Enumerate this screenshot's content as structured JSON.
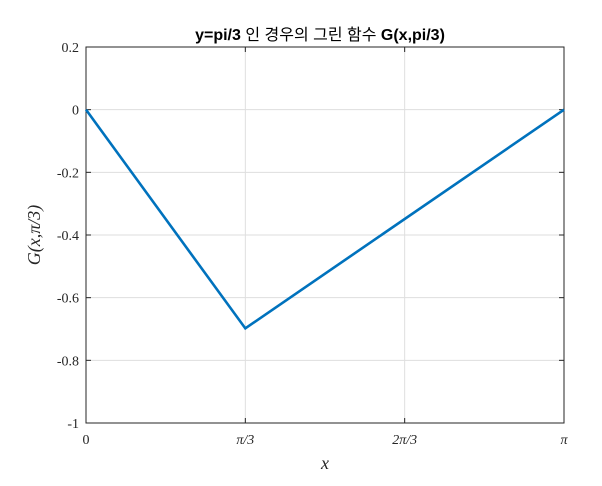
{
  "chart_data": {
    "type": "line",
    "title_parts": [
      {
        "text": "y=pi/3",
        "bold": true
      },
      {
        "text": " 인 경우의 그린 함수 ",
        "bold": false
      },
      {
        "text": "G(x,pi/3)",
        "bold": true
      }
    ],
    "xlabel": "x",
    "ylabel": "G(x,π/3)",
    "xlim": [
      0,
      3.14159265
    ],
    "ylim": [
      -1,
      0.2
    ],
    "x_ticks": [
      {
        "value": 0,
        "label": "0"
      },
      {
        "value": 1.04719755,
        "label": "π/3"
      },
      {
        "value": 2.0943951,
        "label": "2π/3"
      },
      {
        "value": 3.14159265,
        "label": "π"
      }
    ],
    "y_ticks": [
      {
        "value": 0.2,
        "label": "0.2"
      },
      {
        "value": 0,
        "label": "0"
      },
      {
        "value": -0.2,
        "label": "-0.2"
      },
      {
        "value": -0.4,
        "label": "-0.4"
      },
      {
        "value": -0.6,
        "label": "-0.6"
      },
      {
        "value": -0.8,
        "label": "-0.8"
      },
      {
        "value": -1,
        "label": "-1"
      }
    ],
    "grid": true,
    "series": [
      {
        "color": "#0072bd",
        "x": [
          0,
          1.04719755,
          3.14159265
        ],
        "y": [
          0,
          -0.698,
          0
        ]
      }
    ]
  }
}
